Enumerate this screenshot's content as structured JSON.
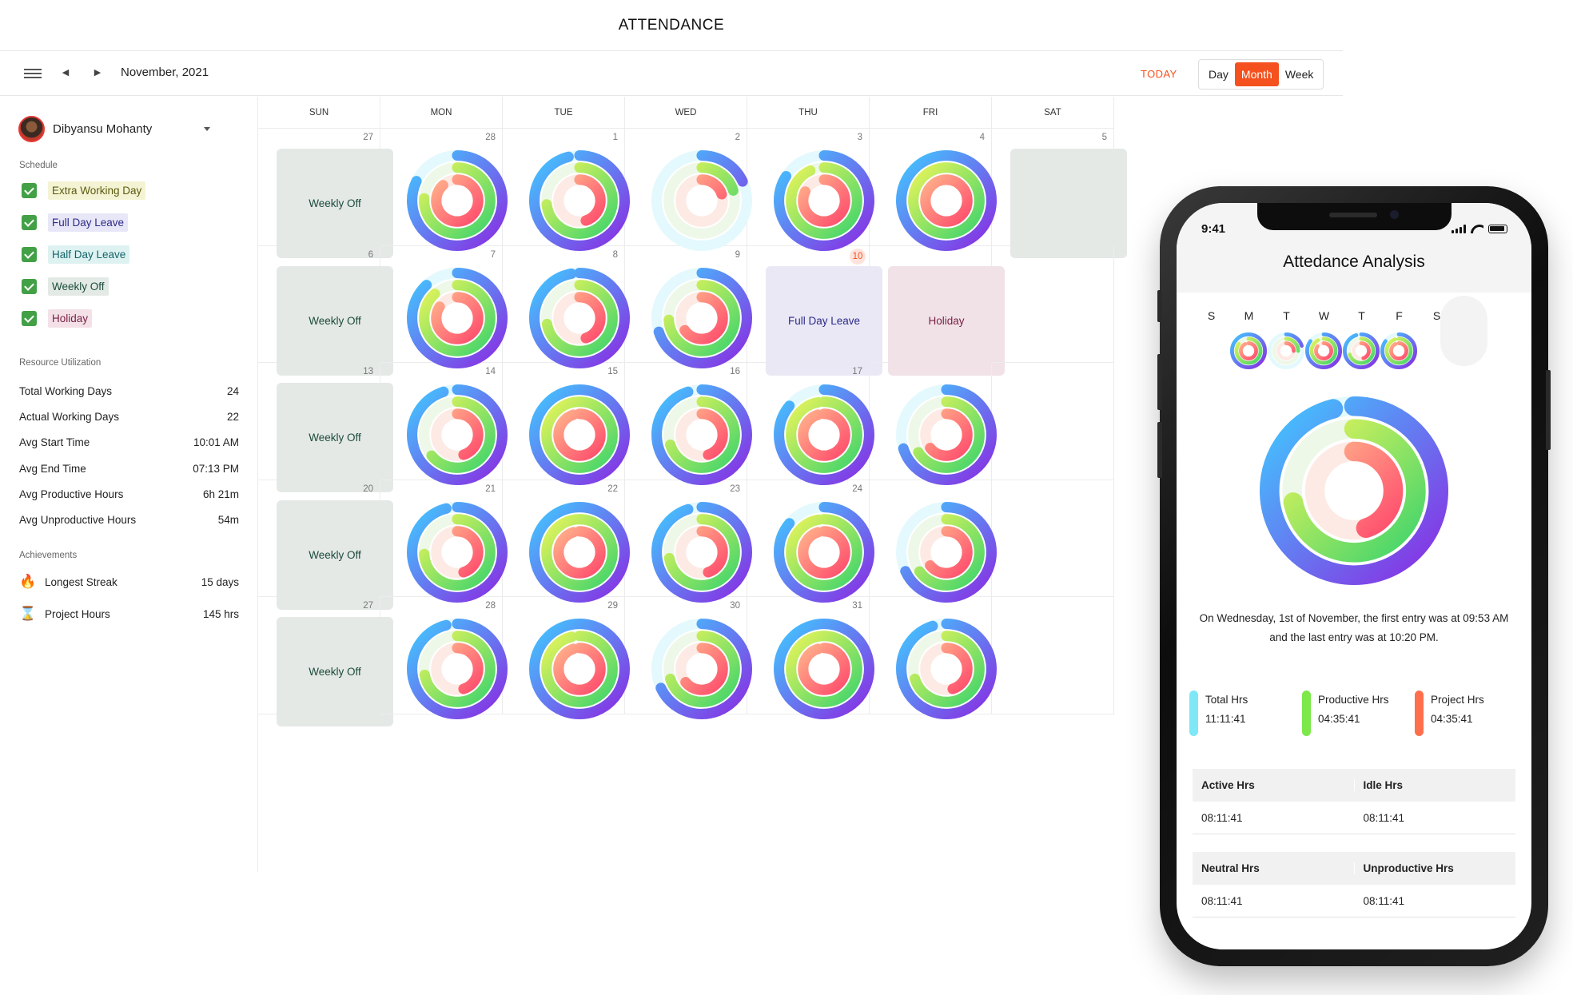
{
  "app_title": "ATTENDANCE",
  "toolbar": {
    "month_label": "November, 2021",
    "today_label": "TODAY",
    "views": [
      "Day",
      "Month",
      "Week"
    ],
    "active_view": "Month",
    "accent_color": "#f4511e"
  },
  "sidebar": {
    "user_name": "Dibyansu Mohanty",
    "schedule_title": "Schedule",
    "schedule_items": [
      {
        "label": "Extra Working Day",
        "bg": "#f4f4d4",
        "fg": "#5a5a12"
      },
      {
        "label": "Full Day Leave",
        "bg": "#e8e7f7",
        "fg": "#2b2a87"
      },
      {
        "label": "Half Day Leave",
        "bg": "#dff2f2",
        "fg": "#136469"
      },
      {
        "label": "Weekly Off",
        "bg": "#e3eae6",
        "fg": "#1b4b3a"
      },
      {
        "label": "Holiday",
        "bg": "#f4e1e8",
        "fg": "#7a2246"
      }
    ],
    "utilization_title": "Resource Utilization",
    "stats": [
      {
        "label": "Total Working Days",
        "value": "24"
      },
      {
        "label": "Actual Working Days",
        "value": "22"
      },
      {
        "label": "Avg Start Time",
        "value": "10:01 AM"
      },
      {
        "label": "Avg End Time",
        "value": "07:13 PM"
      },
      {
        "label": "Avg Productive Hours",
        "value": "6h 21m"
      },
      {
        "label": "Avg Unproductive Hours",
        "value": "54m"
      }
    ],
    "achievements_title": "Achievements",
    "achievements": [
      {
        "icon": "fire-icon",
        "glyph": "🔥",
        "label": "Longest Streak",
        "value": "15 days"
      },
      {
        "icon": "hourglass-icon",
        "glyph": "⌛",
        "label": "Project Hours",
        "value": "145 hrs"
      }
    ]
  },
  "calendar": {
    "weekdays": [
      "SUN",
      "MON",
      "TUE",
      "WED",
      "THU",
      "FRI",
      "SAT"
    ],
    "today": "10",
    "weeks": [
      [
        {
          "day": "27",
          "type": "block",
          "label": "Weekly Off"
        },
        {
          "day": "28",
          "type": "ring",
          "rings": [
            0.82,
            0.76,
            0.88
          ],
          "fade": false
        },
        {
          "day": "1",
          "type": "ring",
          "rings": [
            0.96,
            0.73,
            0.45
          ],
          "fade": false
        },
        {
          "day": "2",
          "type": "ring",
          "rings": [
            0.18,
            0.2,
            0.2
          ],
          "fade": true
        },
        {
          "day": "3",
          "type": "ring",
          "rings": [
            0.84,
            0.93,
            0.82
          ],
          "fade": false
        },
        {
          "day": "4",
          "type": "ring",
          "rings": [
            1.0,
            1.0,
            1.0
          ],
          "fade": false
        },
        {
          "day": "5",
          "type": "block-partial",
          "label": ""
        }
      ],
      [
        {
          "day": "6",
          "type": "block",
          "label": "Weekly Off"
        },
        {
          "day": "7",
          "type": "ring",
          "rings": [
            0.88,
            0.88,
            0.84
          ],
          "fade": false
        },
        {
          "day": "8",
          "type": "ring",
          "rings": [
            0.97,
            0.72,
            0.45
          ],
          "fade": false
        },
        {
          "day": "9",
          "type": "ring",
          "rings": [
            0.7,
            0.74,
            0.65
          ],
          "fade": true
        },
        {
          "day": "10",
          "type": "block",
          "label": "Full Day Leave"
        },
        {
          "day": "",
          "type": "block",
          "label": "Holiday"
        },
        {
          "day": "",
          "type": "empty"
        }
      ],
      [
        {
          "day": "13",
          "type": "block",
          "label": "Weekly Off"
        },
        {
          "day": "14",
          "type": "ring",
          "rings": [
            0.95,
            0.64,
            0.45
          ],
          "fade": false
        },
        {
          "day": "15",
          "type": "ring",
          "rings": [
            1.0,
            1.0,
            0.95
          ],
          "fade": false
        },
        {
          "day": "16",
          "type": "ring",
          "rings": [
            0.95,
            0.7,
            0.45
          ],
          "fade": false
        },
        {
          "day": "17",
          "type": "ring",
          "rings": [
            0.86,
            0.97,
            0.95
          ],
          "fade": false
        },
        {
          "day": "",
          "type": "ring",
          "rings": [
            0.7,
            0.66,
            0.64
          ],
          "fade": true
        },
        {
          "day": "",
          "type": "empty"
        }
      ],
      [
        {
          "day": "20",
          "type": "block",
          "label": "Weekly Off"
        },
        {
          "day": "21",
          "type": "ring",
          "rings": [
            0.96,
            0.74,
            0.45
          ],
          "fade": false
        },
        {
          "day": "22",
          "type": "ring",
          "rings": [
            1.0,
            1.0,
            0.95
          ],
          "fade": false
        },
        {
          "day": "23",
          "type": "ring",
          "rings": [
            0.95,
            0.72,
            0.45
          ],
          "fade": false
        },
        {
          "day": "24",
          "type": "ring",
          "rings": [
            0.86,
            0.97,
            0.95
          ],
          "fade": false
        },
        {
          "day": "",
          "type": "ring",
          "rings": [
            0.68,
            0.65,
            0.64
          ],
          "fade": true
        },
        {
          "day": "",
          "type": "empty"
        }
      ],
      [
        {
          "day": "27",
          "type": "block",
          "label": "Weekly Off"
        },
        {
          "day": "28",
          "type": "ring",
          "rings": [
            0.96,
            0.72,
            0.45
          ],
          "fade": false
        },
        {
          "day": "29",
          "type": "ring",
          "rings": [
            1.0,
            0.96,
            0.95
          ],
          "fade": false
        },
        {
          "day": "30",
          "type": "ring",
          "rings": [
            0.68,
            0.7,
            0.64
          ],
          "fade": true
        },
        {
          "day": "31",
          "type": "ring",
          "rings": [
            1.0,
            1.0,
            0.95
          ],
          "fade": false
        },
        {
          "day": "",
          "type": "ring",
          "rings": [
            0.95,
            0.7,
            0.45
          ],
          "fade": false
        },
        {
          "day": "",
          "type": "empty"
        }
      ]
    ]
  },
  "phone": {
    "time": "9:41",
    "title": "Attedance Analysis",
    "week_letters": [
      "S",
      "M",
      "T",
      "W",
      "T",
      "F",
      "S"
    ],
    "week_rings": [
      {
        "rings": [
          1.0,
          0.85,
          0.92
        ],
        "fade": false
      },
      {
        "rings": [
          0.2,
          0.25,
          0.25
        ],
        "fade": true
      },
      {
        "rings": [
          0.85,
          0.92,
          0.85
        ],
        "fade": false
      },
      {
        "rings": [
          0.95,
          0.7,
          0.45
        ],
        "fade": false
      },
      {
        "rings": [
          0.85,
          0.95,
          0.92
        ],
        "fade": false
      }
    ],
    "big_ring": [
      0.96,
      0.72,
      0.45
    ],
    "description": "On Wednesday, 1st of November, the first entry was at 09:53 AM and the last entry was at 10:20 PM.",
    "legend": [
      {
        "label": "Total Hrs",
        "value": "11:11:41",
        "color": "#7ee8f7"
      },
      {
        "label": "Productive Hrs",
        "value": "04:35:41",
        "color": "#7ce84a"
      },
      {
        "label": "Project Hrs",
        "value": "04:35:41",
        "color": "#ff6f4d"
      }
    ],
    "table1": {
      "headers": [
        "Active Hrs",
        "Idle Hrs"
      ],
      "values": [
        "08:11:41",
        "08:11:41"
      ]
    },
    "table2": {
      "headers": [
        "Neutral Hrs",
        "Unproductive Hrs"
      ],
      "values": [
        "08:11:41",
        "08:11:41"
      ]
    }
  }
}
